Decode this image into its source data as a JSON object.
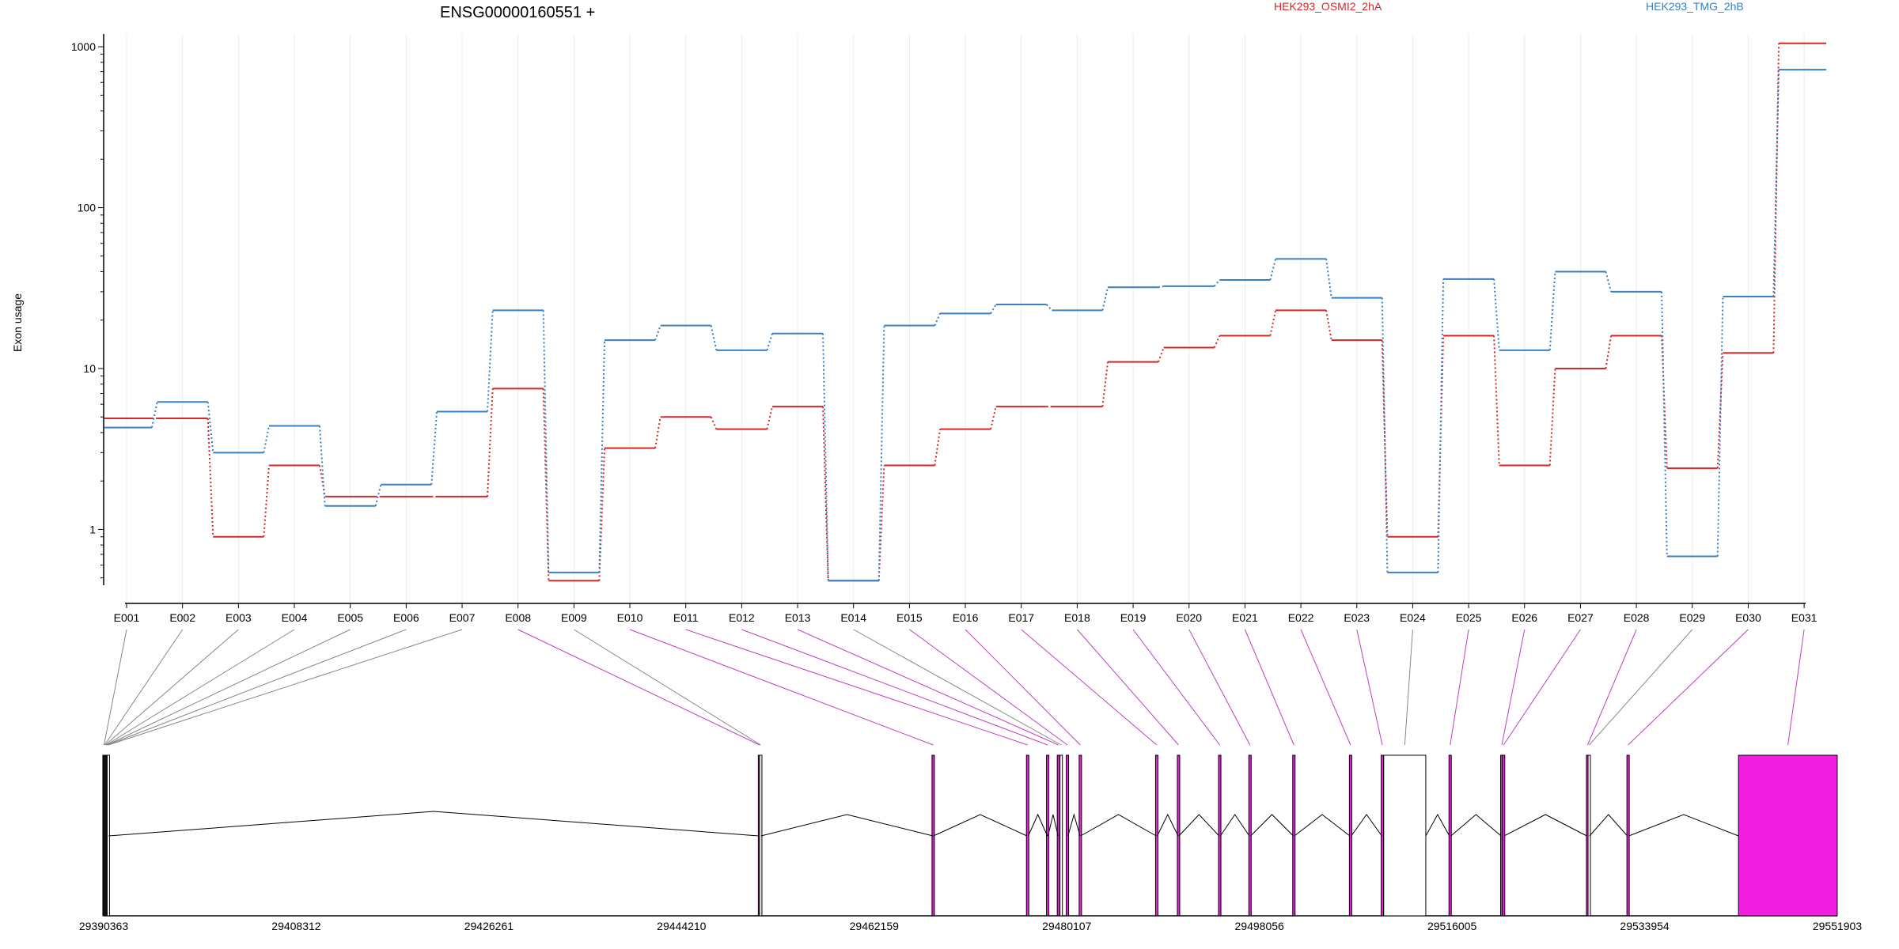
{
  "chart_data": {
    "type": "line",
    "title": "ENSG00000160551 +",
    "ylabel": "Exon usage",
    "yscale": "log",
    "y_ticks": [
      1,
      10,
      100,
      1000
    ],
    "ylim": [
      0.45,
      1200
    ],
    "grid": "vertical",
    "legend_placement": "top-right",
    "categories": [
      "E001",
      "E002",
      "E003",
      "E004",
      "E005",
      "E006",
      "E007",
      "E008",
      "E009",
      "E010",
      "E011",
      "E012",
      "E013",
      "E014",
      "E015",
      "E016",
      "E017",
      "E018",
      "E019",
      "E020",
      "E021",
      "E022",
      "E023",
      "E024",
      "E025",
      "E026",
      "E027",
      "E028",
      "E029",
      "E030",
      "E031"
    ],
    "series": [
      {
        "name": "HEK293_OSMI2_2hA",
        "color": "#d62728",
        "values": [
          4.9,
          4.9,
          0.9,
          2.5,
          1.6,
          1.6,
          1.6,
          7.5,
          0.48,
          3.2,
          5.0,
          4.2,
          5.8,
          0.48,
          2.5,
          4.2,
          5.8,
          5.8,
          11,
          13.5,
          16,
          23,
          15,
          0.9,
          16,
          2.5,
          10,
          16,
          2.4,
          12.5,
          1050
        ]
      },
      {
        "name": "HEK293_TMG_2hB",
        "color": "#3a7fc1",
        "values": [
          4.3,
          6.2,
          3.0,
          4.4,
          1.4,
          1.9,
          5.4,
          23,
          0.54,
          15,
          18.5,
          13,
          16.5,
          0.48,
          18.5,
          22,
          25,
          23,
          32,
          32.5,
          35.5,
          48,
          27.5,
          0.54,
          36,
          13,
          40,
          30,
          0.68,
          28,
          720
        ]
      }
    ],
    "gene_model": {
      "genomic_range": [
        29390363,
        29551903
      ],
      "coordinate_ticks": [
        "29390363",
        "29408312",
        "29426261",
        "29444210",
        "29462159",
        "29480107",
        "29498056",
        "29516005",
        "29533954",
        "29551903"
      ],
      "exons": [
        {
          "id": "E001",
          "start": 29390370,
          "end": 29390420,
          "significant": false
        },
        {
          "id": "E002",
          "start": 29390430,
          "end": 29390480,
          "significant": false
        },
        {
          "id": "E003",
          "start": 29390490,
          "end": 29390540,
          "significant": false
        },
        {
          "id": "E004",
          "start": 29390560,
          "end": 29390620,
          "significant": false
        },
        {
          "id": "E005",
          "start": 29390640,
          "end": 29390690,
          "significant": false
        },
        {
          "id": "E006",
          "start": 29390700,
          "end": 29390760,
          "significant": false
        },
        {
          "id": "E007",
          "start": 29390770,
          "end": 29390830,
          "significant": false
        },
        {
          "id": "E008",
          "start": 29451400,
          "end": 29451550,
          "significant": true
        },
        {
          "id": "E009",
          "start": 29451560,
          "end": 29451620,
          "significant": false
        },
        {
          "id": "E010",
          "start": 29467640,
          "end": 29467680,
          "significant": true
        },
        {
          "id": "E011",
          "start": 29476400,
          "end": 29476520,
          "significant": true
        },
        {
          "id": "E012",
          "start": 29478300,
          "end": 29478360,
          "significant": true
        },
        {
          "id": "E013",
          "start": 29479300,
          "end": 29479360,
          "significant": true
        },
        {
          "id": "E014",
          "start": 29479560,
          "end": 29479620,
          "significant": false
        },
        {
          "id": "E015",
          "start": 29480120,
          "end": 29480220,
          "significant": true
        },
        {
          "id": "E016",
          "start": 29481340,
          "end": 29481400,
          "significant": true
        },
        {
          "id": "E017",
          "start": 29488440,
          "end": 29488540,
          "significant": true
        },
        {
          "id": "E018",
          "start": 29490480,
          "end": 29490560,
          "significant": true
        },
        {
          "id": "E019",
          "start": 29494300,
          "end": 29494420,
          "significant": true
        },
        {
          "id": "E020",
          "start": 29497120,
          "end": 29497240,
          "significant": true
        },
        {
          "id": "E021",
          "start": 29501220,
          "end": 29501320,
          "significant": true
        },
        {
          "id": "E022",
          "start": 29506480,
          "end": 29506620,
          "significant": true
        },
        {
          "id": "E023",
          "start": 29509460,
          "end": 29509560,
          "significant": true
        },
        {
          "id": "E024",
          "start": 29509640,
          "end": 29513560,
          "significant": false
        },
        {
          "id": "E025",
          "start": 29515760,
          "end": 29515900,
          "significant": true
        },
        {
          "id": "E026",
          "start": 29520570,
          "end": 29520720,
          "significant": true
        },
        {
          "id": "E027",
          "start": 29520760,
          "end": 29520860,
          "significant": true
        },
        {
          "id": "E028",
          "start": 29528560,
          "end": 29528720,
          "significant": true
        },
        {
          "id": "E029",
          "start": 29528760,
          "end": 29528820,
          "significant": false
        },
        {
          "id": "E030",
          "start": 29532340,
          "end": 29532480,
          "significant": true
        },
        {
          "id": "E031",
          "start": 29542700,
          "end": 29551900,
          "significant": true
        }
      ]
    }
  }
}
